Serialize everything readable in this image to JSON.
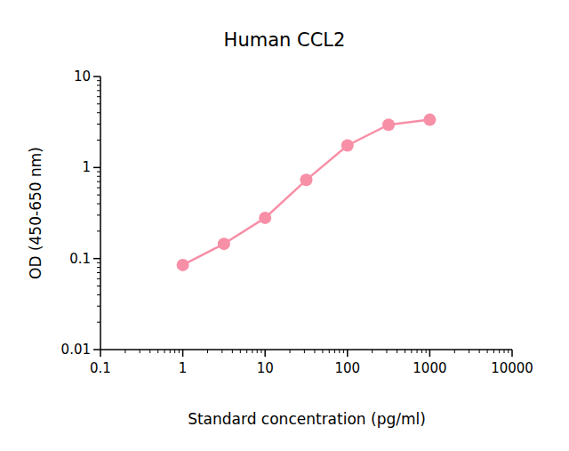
{
  "chart_data": {
    "type": "line",
    "title": "Human CCL2",
    "x_label": "Standard concentration (pg/ml)",
    "y_label": "OD (450-650 nm)",
    "x": [
      1,
      3.16,
      10,
      31.6,
      100,
      316,
      1000
    ],
    "values": [
      0.085,
      0.145,
      0.28,
      0.73,
      1.75,
      2.95,
      3.35
    ],
    "color": "#f78fa7",
    "marker": "circle",
    "log": true,
    "grid": false,
    "xlim": [
      0.1,
      10000
    ],
    "xticks": [
      0.1,
      1,
      10,
      100,
      1000,
      10000
    ],
    "ylim": [
      0.01,
      10
    ],
    "yticks": [
      0.01,
      0.1,
      1,
      10
    ]
  }
}
